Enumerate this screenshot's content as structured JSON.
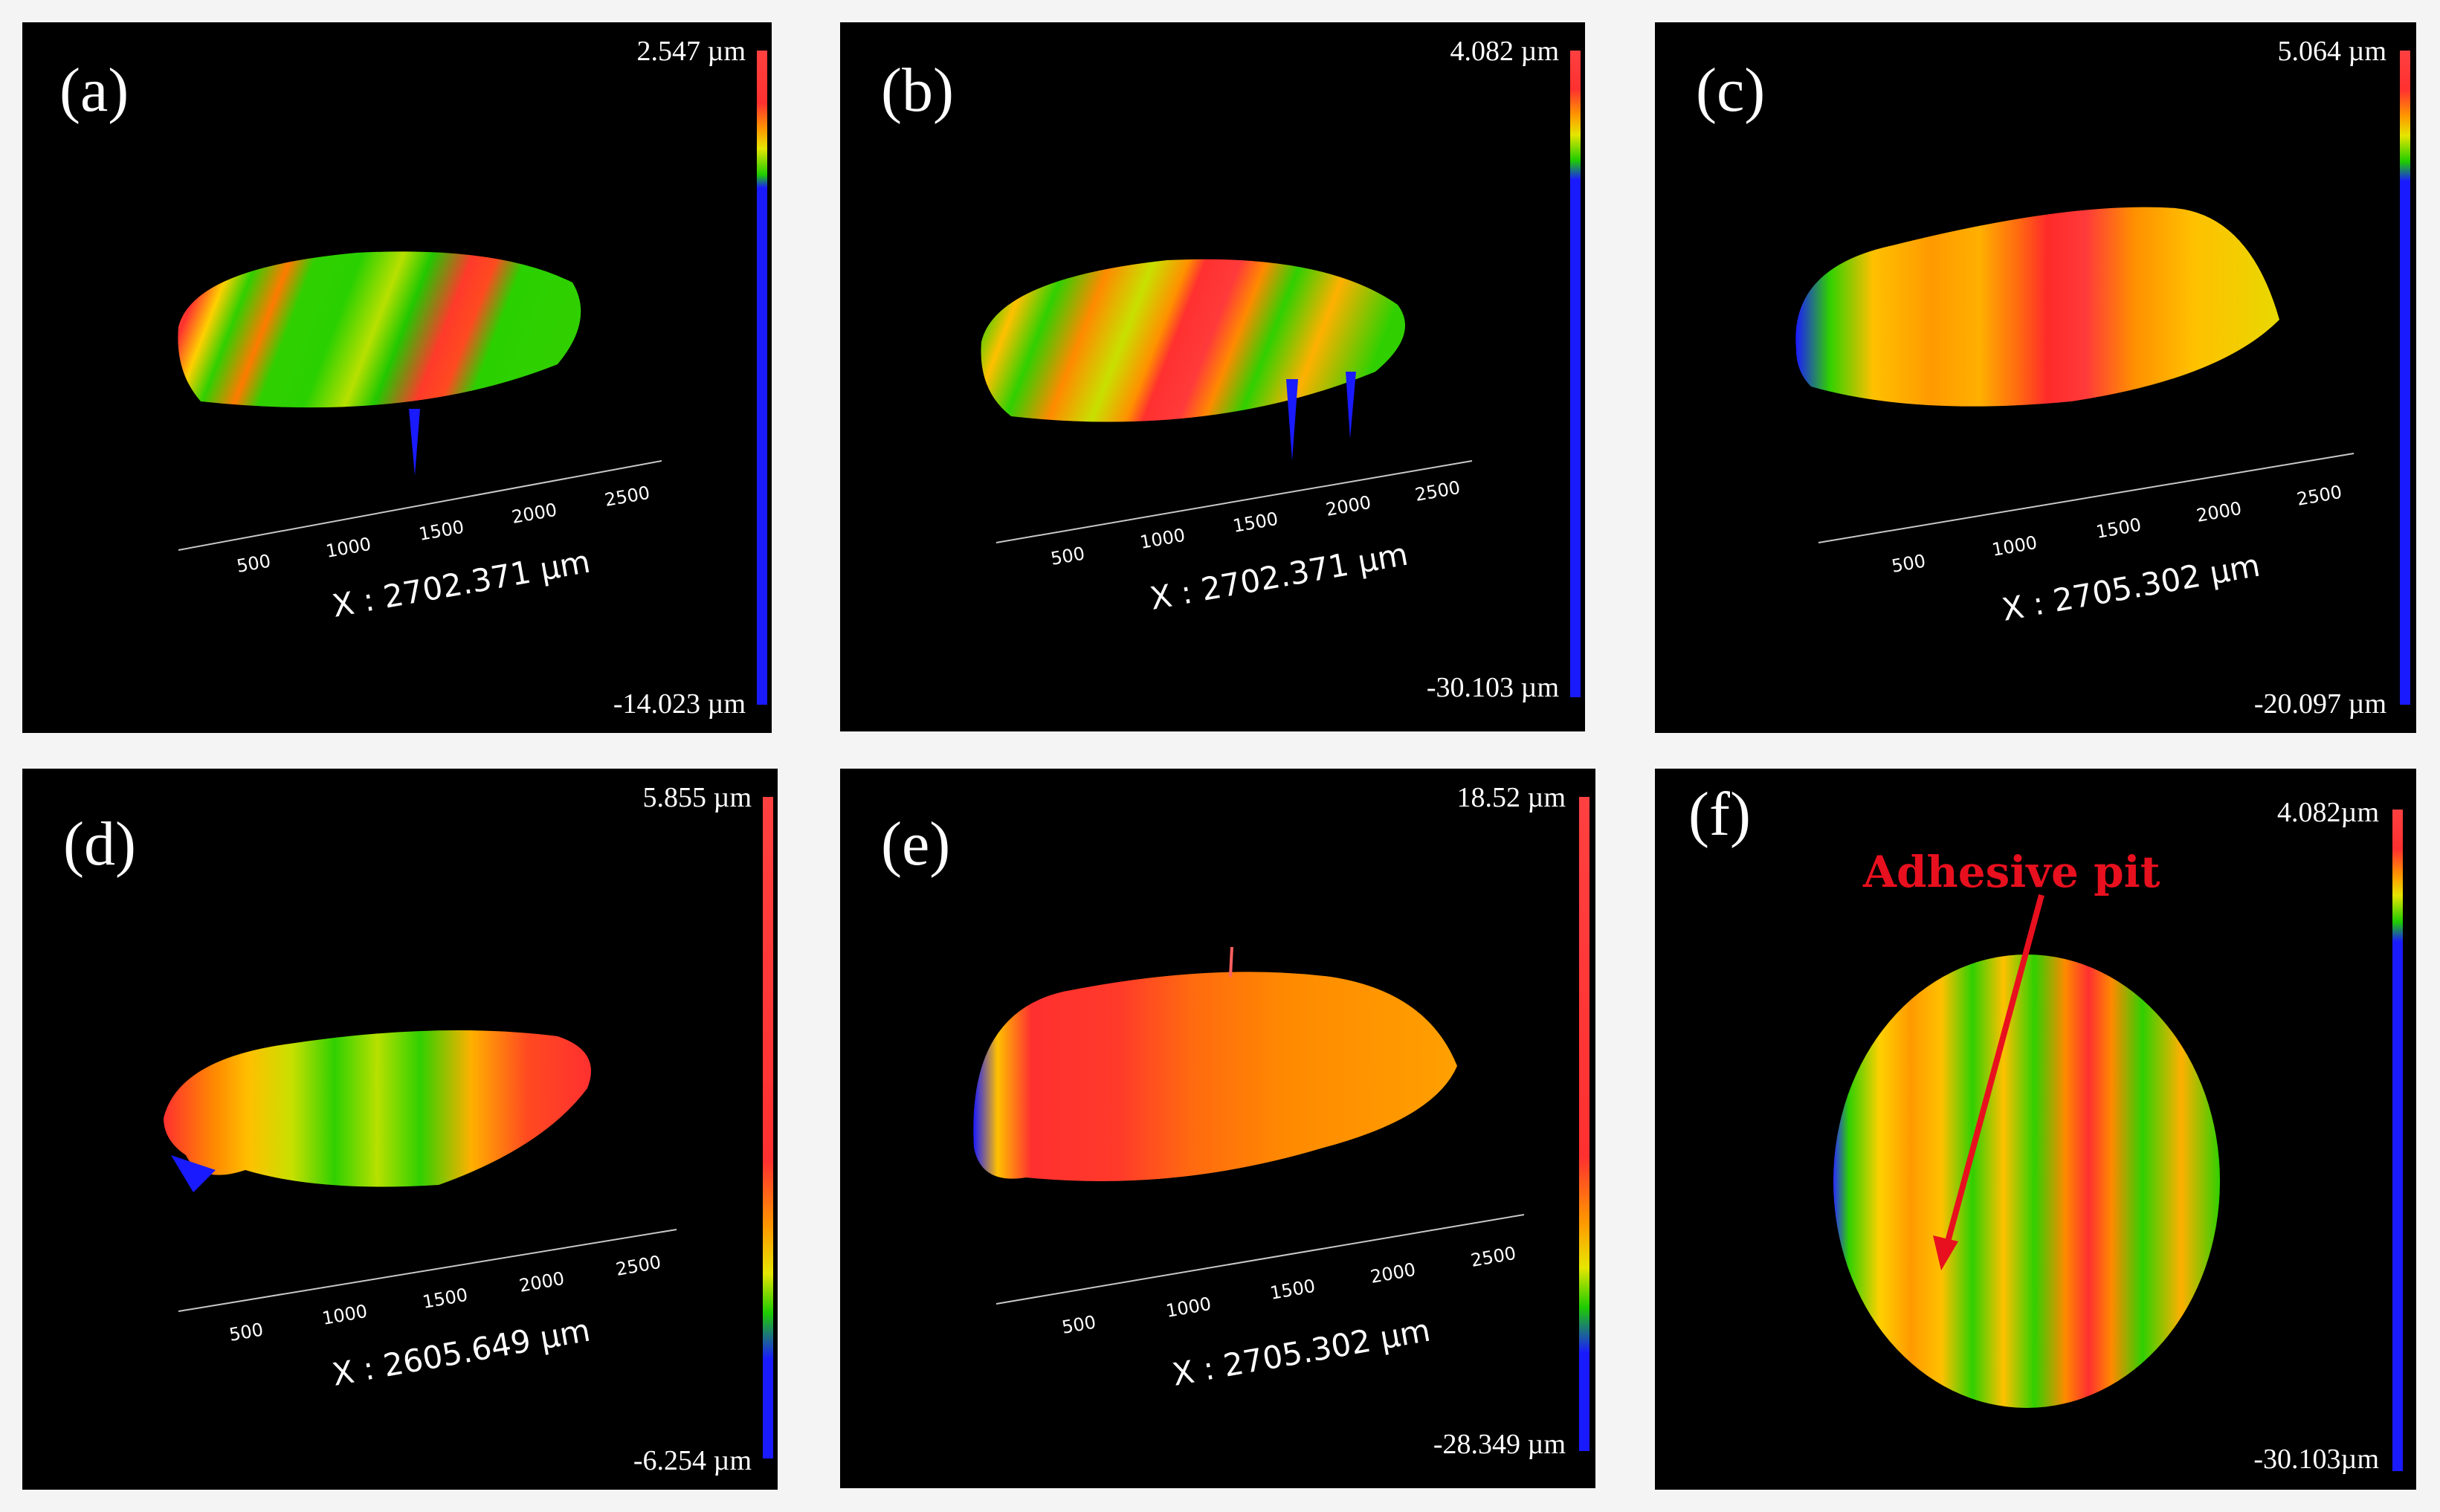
{
  "colors": {
    "background": "#f4f4f4",
    "panel": "#000000",
    "annotation": "#e8101e",
    "colormap": [
      "#ff3b3b",
      "#ff9800",
      "#e6e600",
      "#1ecc00",
      "#1a1aff"
    ]
  },
  "panels": [
    {
      "label": "(a)",
      "max": "2.547 µm",
      "min": "-14.023 µm",
      "x_readout": "X : 2702.371 µm",
      "ticks": [
        "500",
        "1000",
        "1500",
        "2000",
        "2500"
      ]
    },
    {
      "label": "(b)",
      "max": "4.082 µm",
      "min": "-30.103 µm",
      "x_readout": "X : 2702.371 µm",
      "ticks": [
        "500",
        "1000",
        "1500",
        "2000",
        "2500"
      ]
    },
    {
      "label": "(c)",
      "max": "5.064 µm",
      "min": "-20.097 µm",
      "x_readout": "X : 2705.302 µm",
      "ticks": [
        "500",
        "1000",
        "1500",
        "2000",
        "2500"
      ]
    },
    {
      "label": "(d)",
      "max": "5.855 µm",
      "min": "-6.254 µm",
      "x_readout": "X : 2605.649 µm",
      "ticks": [
        "500",
        "1000",
        "1500",
        "2000",
        "2500"
      ]
    },
    {
      "label": "(e)",
      "max": "18.52 µm",
      "min": "-28.349 µm",
      "x_readout": "X : 2705.302 µm",
      "ticks": [
        "500",
        "1000",
        "1500",
        "2000",
        "2500"
      ]
    },
    {
      "label": "(f)",
      "max": "4.082µm",
      "min": "-30.103µm",
      "annotation": "Adhesive pit"
    }
  ]
}
